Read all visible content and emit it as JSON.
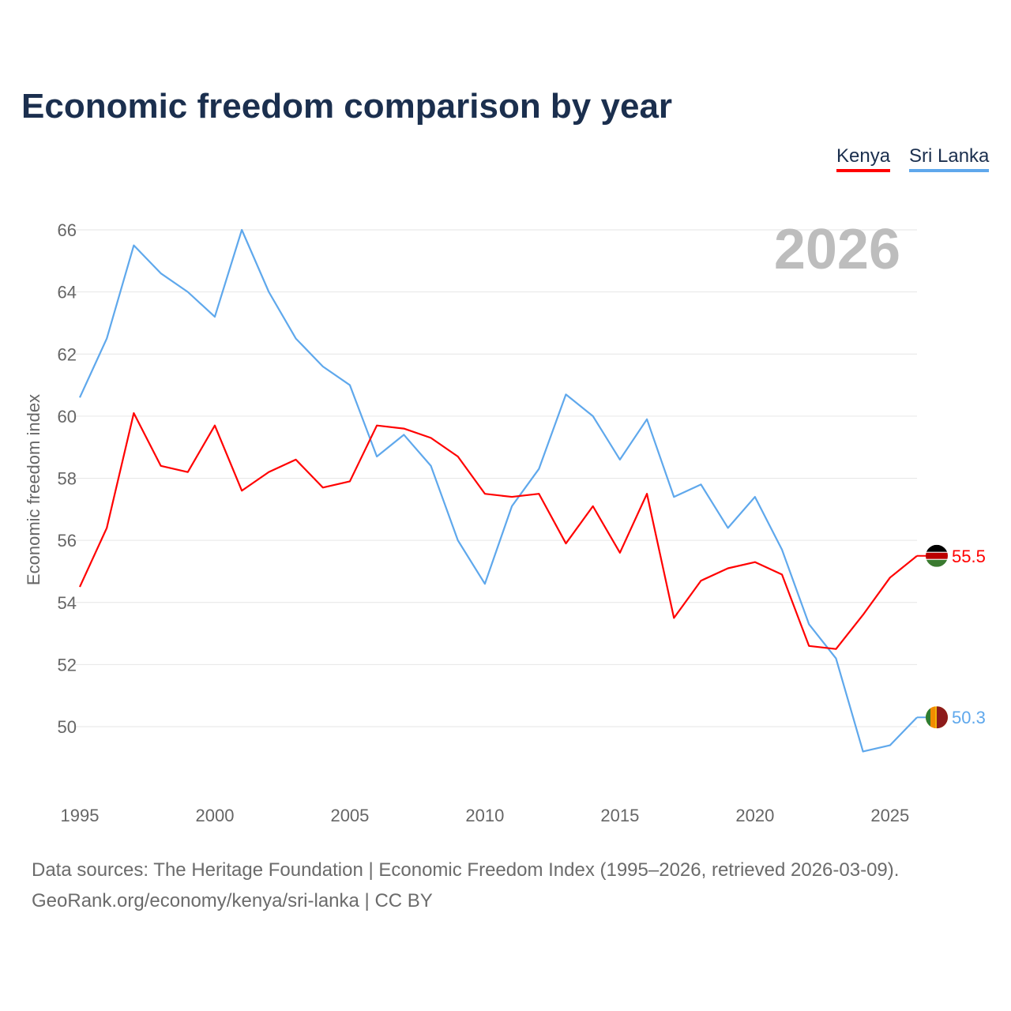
{
  "chart_data": {
    "type": "line",
    "title": "Economic freedom comparison by year",
    "ylabel": "Economic freedom index",
    "xlabel": "",
    "ylim": [
      48,
      66
    ],
    "xlim": [
      1995,
      2026
    ],
    "yticks": [
      50,
      52,
      54,
      56,
      58,
      60,
      62,
      64,
      66
    ],
    "xticks": [
      1995,
      2000,
      2005,
      2010,
      2015,
      2020,
      2025
    ],
    "year_label": "2026",
    "grid": true,
    "legend_position": "top-right",
    "x": [
      1995,
      1996,
      1997,
      1998,
      1999,
      2000,
      2001,
      2002,
      2003,
      2004,
      2005,
      2006,
      2007,
      2008,
      2009,
      2010,
      2011,
      2012,
      2013,
      2014,
      2015,
      2016,
      2017,
      2018,
      2019,
      2020,
      2021,
      2022,
      2023,
      2024,
      2025,
      2026
    ],
    "series": [
      {
        "name": "Kenya",
        "color": "#ff0000",
        "end_label": "55.5",
        "flag": "kenya-flag",
        "values": [
          54.5,
          56.4,
          60.1,
          58.4,
          58.2,
          59.7,
          57.6,
          58.2,
          58.6,
          57.7,
          57.9,
          59.7,
          59.6,
          59.3,
          58.7,
          57.5,
          57.4,
          57.5,
          55.9,
          57.1,
          55.6,
          57.5,
          53.5,
          54.7,
          55.1,
          55.3,
          54.9,
          52.6,
          52.5,
          53.6,
          54.8,
          55.5
        ]
      },
      {
        "name": "Sri Lanka",
        "color": "#5fa8ec",
        "end_label": "50.3",
        "flag": "sri-lanka-flag",
        "values": [
          60.6,
          62.5,
          65.5,
          64.6,
          64.0,
          63.2,
          66.0,
          64.0,
          62.5,
          61.6,
          61.0,
          58.7,
          59.4,
          58.4,
          56.0,
          54.6,
          57.1,
          58.3,
          60.7,
          60.0,
          58.6,
          59.9,
          57.4,
          57.8,
          56.4,
          57.4,
          55.7,
          53.3,
          52.2,
          49.2,
          49.4,
          50.3
        ]
      }
    ]
  },
  "footer": {
    "line1": "Data sources: The Heritage Foundation | Economic Freedom Index (1995–2026, retrieved 2026-03-09).",
    "line2": "GeoRank.org/economy/kenya/sri-lanka | CC BY"
  }
}
